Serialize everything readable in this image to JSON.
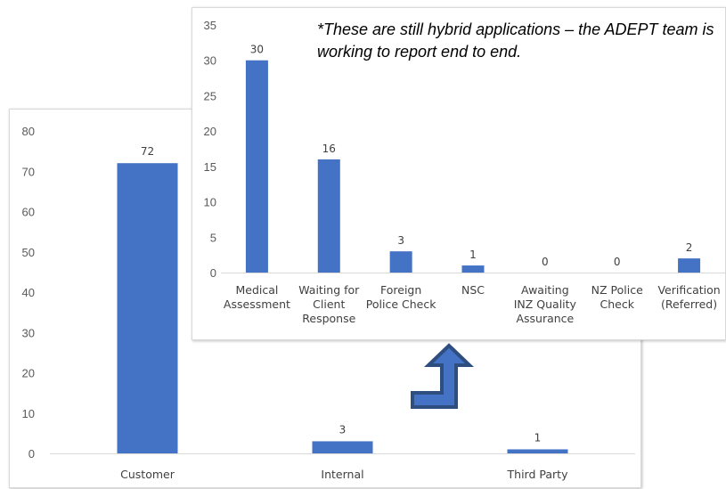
{
  "note": "*These are still hybrid applications – the ADEPT team is working to report end to end.",
  "colors": {
    "bar": "#4472C4",
    "arrow_fill": "#4472C4",
    "arrow_stroke": "#2F4E80"
  },
  "arrow": {
    "icon": "up-arrow-icon",
    "direction": "up"
  },
  "chart_data": [
    {
      "type": "bar",
      "title": "",
      "categories": [
        "Customer",
        "Internal",
        "Third Party"
      ],
      "values": [
        72,
        3,
        1
      ],
      "ylim": [
        0,
        80
      ],
      "yticks": [
        0,
        10,
        20,
        30,
        40,
        50,
        60,
        70,
        80
      ],
      "data_labels": true,
      "grid": false
    },
    {
      "type": "bar",
      "title": "",
      "categories": [
        [
          "Medical",
          "Assessment"
        ],
        [
          "Waiting for",
          "Client",
          "Response"
        ],
        [
          "Foreign",
          "Police Check"
        ],
        [
          "NSC"
        ],
        [
          "Awaiting",
          "INZ Quality",
          "Assurance"
        ],
        [
          "NZ Police",
          "Check"
        ],
        [
          "Verification",
          "(Referred)"
        ]
      ],
      "values": [
        30,
        16,
        3,
        1,
        0,
        0,
        2
      ],
      "ylim": [
        0,
        35
      ],
      "yticks": [
        0,
        5,
        10,
        15,
        20,
        25,
        30,
        35
      ],
      "data_labels": true,
      "grid": false
    }
  ]
}
